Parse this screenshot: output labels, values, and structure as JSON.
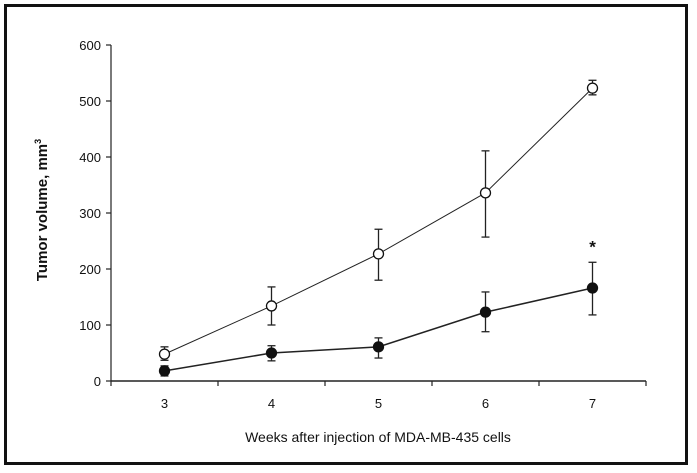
{
  "chart_data": {
    "type": "line",
    "title": "",
    "xlabel": "Weeks after injection of MDA-MB-435 cells",
    "ylabel": "Tumor volume, mm",
    "ylabel_superscript": "3",
    "categories": [
      "3",
      "4",
      "5",
      "6",
      "7"
    ],
    "ylim": [
      0,
      600
    ],
    "yticks": [
      0,
      100,
      200,
      300,
      400,
      500,
      600
    ],
    "grid": false,
    "legend": null,
    "series": [
      {
        "name": "open-circles",
        "marker": "open-circle",
        "values": [
          48,
          134,
          227,
          336,
          523
        ],
        "error_low": [
          37,
          100,
          180,
          257,
          511
        ],
        "error_high": [
          61,
          168,
          271,
          411,
          537
        ]
      },
      {
        "name": "filled-circles",
        "marker": "filled-circle",
        "values": [
          18,
          50,
          61,
          123,
          166
        ],
        "error_low": [
          9,
          36,
          41,
          88,
          118
        ],
        "error_high": [
          27,
          63,
          77,
          159,
          212
        ]
      }
    ],
    "annotations": [
      {
        "text": "*",
        "category": "7",
        "y": 240
      }
    ]
  }
}
